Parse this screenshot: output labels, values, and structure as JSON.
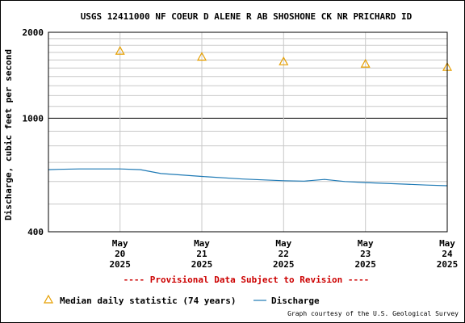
{
  "chart_data": {
    "type": "line",
    "title": "USGS 12411000 NF COEUR D ALENE R AB SHOSHONE CK NR PRICHARD ID",
    "ylabel": "Discharge, cubic feet per second",
    "xlabel": "",
    "y_scale": "log",
    "ylim": [
      400,
      2000
    ],
    "y_ticks": [
      {
        "value": 400,
        "label": "400"
      },
      {
        "value": 1000,
        "label": "1000"
      },
      {
        "value": 2000,
        "label": "2000"
      }
    ],
    "y_minor": [
      500,
      600,
      700,
      800,
      900,
      1100,
      1200,
      1300,
      1400,
      1500,
      1600,
      1700,
      1800,
      1900
    ],
    "xlim": [
      "2025-05-19T15:00",
      "2025-05-24T12:00"
    ],
    "x_ticks": [
      {
        "x": "2025-05-20T12:00",
        "label": [
          "May",
          "20",
          "2025"
        ]
      },
      {
        "x": "2025-05-21T12:00",
        "label": [
          "May",
          "21",
          "2025"
        ]
      },
      {
        "x": "2025-05-22T12:00",
        "label": [
          "May",
          "22",
          "2025"
        ]
      },
      {
        "x": "2025-05-23T12:00",
        "label": [
          "May",
          "23",
          "2025"
        ]
      },
      {
        "x": "2025-05-24T12:00",
        "label": [
          "May",
          "24",
          "2025"
        ]
      }
    ],
    "grid": true,
    "series": [
      {
        "name": "Median daily statistic (74 years)",
        "kind": "marker-triangle",
        "color": "#e69f00",
        "points": [
          {
            "x": "2025-05-20T12:00",
            "y": 1720
          },
          {
            "x": "2025-05-21T12:00",
            "y": 1640
          },
          {
            "x": "2025-05-22T12:00",
            "y": 1580
          },
          {
            "x": "2025-05-23T12:00",
            "y": 1550
          },
          {
            "x": "2025-05-24T12:00",
            "y": 1510
          }
        ]
      },
      {
        "name": "Discharge",
        "kind": "line",
        "color": "#1f7ab5",
        "points": [
          {
            "x": "2025-05-19T15:00",
            "y": 660
          },
          {
            "x": "2025-05-19T18:00",
            "y": 662
          },
          {
            "x": "2025-05-20T00:00",
            "y": 664
          },
          {
            "x": "2025-05-20T12:00",
            "y": 664
          },
          {
            "x": "2025-05-20T18:00",
            "y": 660
          },
          {
            "x": "2025-05-21T00:00",
            "y": 640
          },
          {
            "x": "2025-05-21T12:00",
            "y": 625
          },
          {
            "x": "2025-05-22T00:00",
            "y": 612
          },
          {
            "x": "2025-05-22T12:00",
            "y": 604
          },
          {
            "x": "2025-05-22T18:00",
            "y": 602
          },
          {
            "x": "2025-05-23T00:00",
            "y": 610
          },
          {
            "x": "2025-05-23T06:00",
            "y": 600
          },
          {
            "x": "2025-05-23T12:00",
            "y": 595
          },
          {
            "x": "2025-05-24T00:00",
            "y": 587
          },
          {
            "x": "2025-05-24T06:00",
            "y": 583
          },
          {
            "x": "2025-05-24T12:00",
            "y": 580
          }
        ]
      }
    ]
  },
  "notice": "---- Provisional Data Subject to Revision ----",
  "legend": {
    "median_label": "Median daily statistic (74 years)",
    "discharge_label": "Discharge"
  },
  "credit": "Graph courtesy of the U.S. Geological Survey",
  "colors": {
    "notice": "#cc0000",
    "grid": "#c8c8c8",
    "median": "#e69f00",
    "discharge": "#1f7ab5"
  }
}
